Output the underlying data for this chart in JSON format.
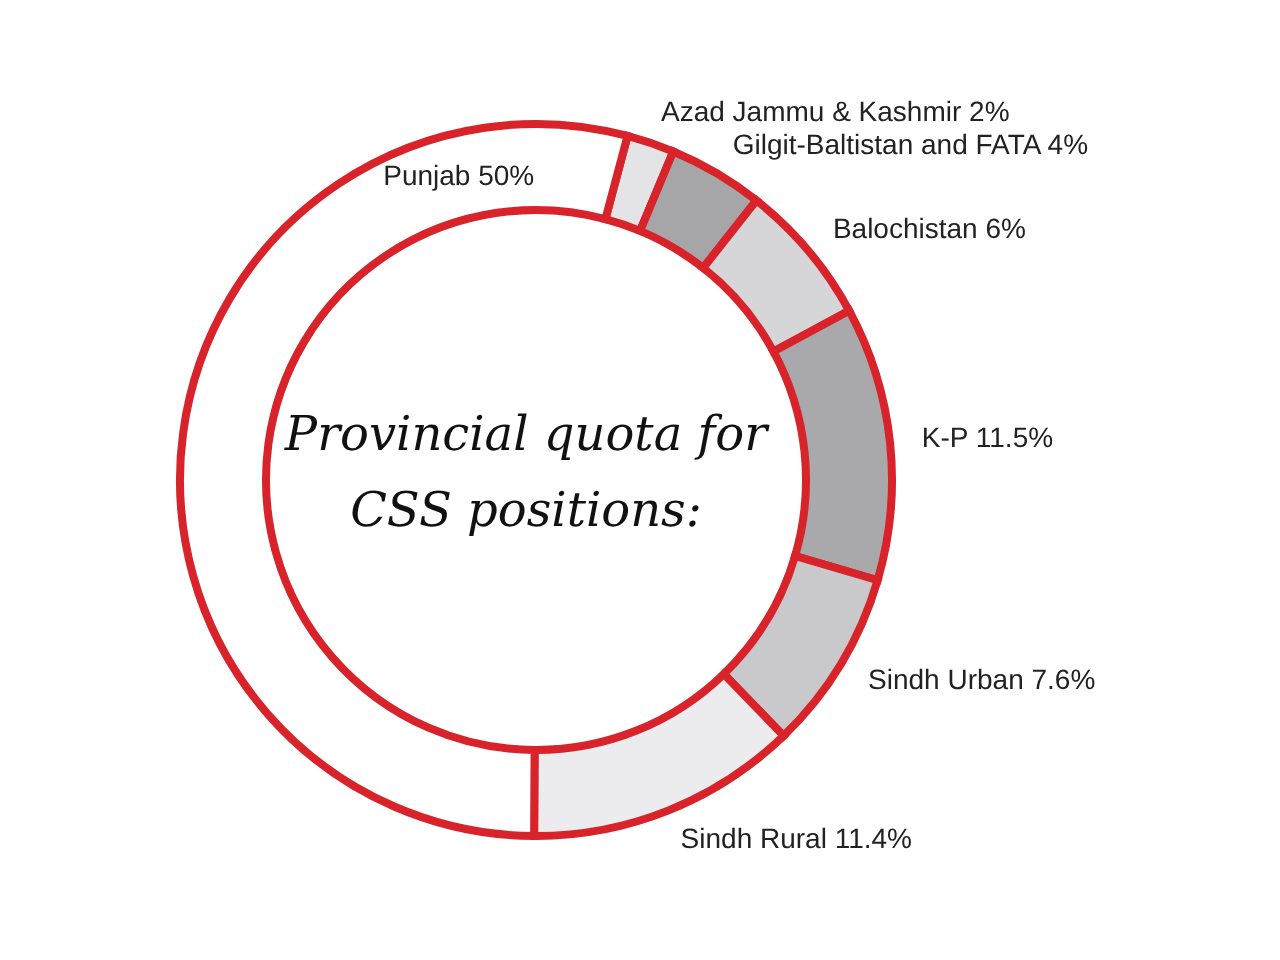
{
  "chart_data": {
    "type": "donut",
    "title": "Provincial quota for CSS positions:",
    "categories": [
      "Azad Jammu & Kashmir",
      "Gilgit-Baltistan and FATA",
      "Balochistan",
      "K-P",
      "Sindh Urban",
      "Sindh Rural",
      "Punjab"
    ],
    "values": [
      2,
      4,
      6,
      11.5,
      7.6,
      11.4,
      50
    ],
    "value_labels": [
      "2%",
      "4%",
      "6%",
      "11.5%",
      "7.6%",
      "11.4%",
      "50%"
    ],
    "colors": [
      "#e4e4e6",
      "#a6a6a9",
      "#d6d6d8",
      "#a9a9ac",
      "#c9c9cb",
      "#ececee",
      "#ffffff"
    ]
  }
}
